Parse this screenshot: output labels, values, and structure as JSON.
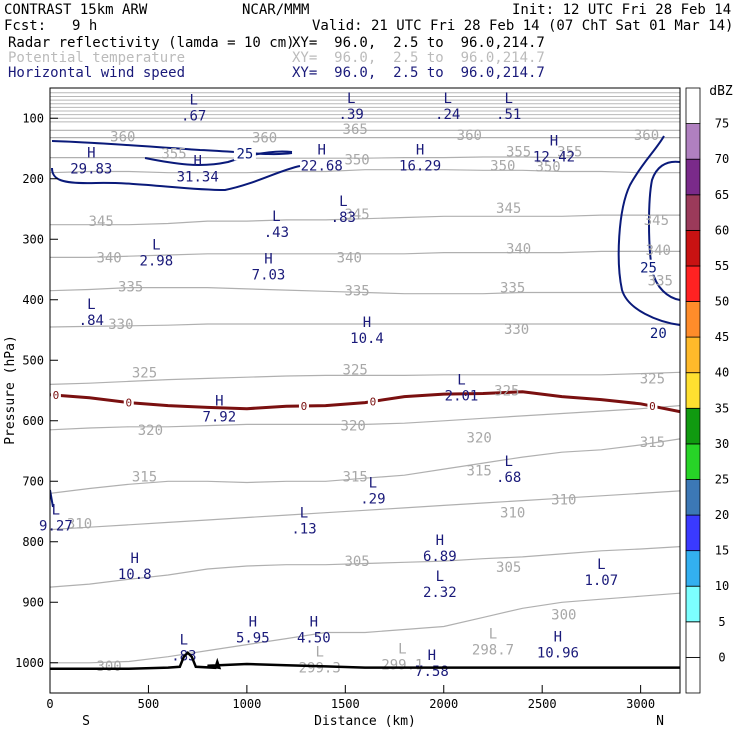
{
  "header": {
    "model": "CONTRAST 15km ARW",
    "org": "NCAR/MMM",
    "init": "Init: 12 UTC Fri 28 Feb 14",
    "fcst_label": "Fcst:",
    "fcst_value": "9 h",
    "valid": "Valid: 21 UTC Fri 28 Feb 14 (07 ChT Sat 01 Mar 14)",
    "fields": [
      {
        "name": "Radar reflectivity (lamda = 10 cm)",
        "xy": "XY=  96.0,  2.5 to  96.0,214.7",
        "color": "#000000"
      },
      {
        "name": "Potential temperature",
        "xy": "XY=  96.0,  2.5 to  96.0,214.7",
        "color": "#bbbbbb"
      },
      {
        "name": "Horizontal wind speed",
        "xy": "XY=  96.0,  2.5 to  96.0,214.7",
        "color": "#1a1a7a"
      }
    ]
  },
  "chart_data": {
    "type": "contour",
    "xlabel": "Distance (km)",
    "ylabel": "Pressure (hPa)",
    "xlim": [
      0,
      3200
    ],
    "ylim": [
      1050,
      50
    ],
    "x_ticks": [
      0,
      500,
      1000,
      1500,
      2000,
      2500,
      3000
    ],
    "y_ticks": [
      100,
      200,
      300,
      400,
      500,
      600,
      700,
      800,
      900,
      1000
    ],
    "x_end_labels": {
      "left": "S",
      "right": "N"
    },
    "colorbar": {
      "unit": "dBZ",
      "levels": [
        0,
        5,
        10,
        15,
        20,
        25,
        30,
        35,
        40,
        45,
        50,
        55,
        60,
        65,
        70,
        75
      ],
      "colors": [
        "#ffffff",
        "#ffffff",
        "#7cffff",
        "#33b0f0",
        "#3a3aff",
        "#3c78b6",
        "#27d427",
        "#109a10",
        "#ffe030",
        "#ffba2a",
        "#ff8c2a",
        "#ff2222",
        "#c81212",
        "#9b3a5a",
        "#7a2a8a",
        "#b080c0",
        "#ffffff"
      ]
    },
    "theta_contours": {
      "color": "#b0b0b0",
      "levels": [
        {
          "value": 300,
          "p": [
            1000,
            1000,
            998,
            990,
            980,
            970,
            960,
            950,
            950,
            945,
            940,
            925,
            910,
            900,
            895,
            890,
            885
          ]
        },
        {
          "value": 305,
          "p": [
            875,
            870,
            862,
            855,
            845,
            840,
            838,
            838,
            836,
            834,
            832,
            828,
            825,
            820,
            815,
            812,
            808
          ]
        },
        {
          "value": 310,
          "p": [
            780,
            776,
            772,
            768,
            764,
            760,
            756,
            752,
            748,
            744,
            740,
            736,
            732,
            728,
            724,
            720,
            716
          ]
        },
        {
          "value": 315,
          "p": [
            720,
            712,
            705,
            700,
            700,
            702,
            700,
            700,
            695,
            690,
            680,
            670,
            660,
            652,
            648,
            640,
            630
          ]
        },
        {
          "value": 320,
          "p": [
            615,
            612,
            610,
            610,
            608,
            606,
            606,
            606,
            606,
            604,
            600,
            596,
            592,
            588,
            584,
            580,
            575
          ]
        },
        {
          "value": 325,
          "p": [
            540,
            538,
            535,
            532,
            530,
            528,
            526,
            525,
            525,
            525,
            524,
            524,
            524,
            524,
            524,
            522,
            520
          ]
        },
        {
          "value": 330,
          "p": [
            445,
            444,
            443,
            442,
            440,
            440,
            440,
            440,
            440,
            440,
            440,
            440,
            440,
            440,
            440,
            440,
            440
          ]
        },
        {
          "value": 335,
          "p": [
            385,
            383,
            380,
            380,
            380,
            382,
            384,
            386,
            388,
            390,
            390,
            390,
            388,
            388,
            388,
            388,
            388
          ]
        },
        {
          "value": 340,
          "p": [
            330,
            330,
            328,
            326,
            324,
            324,
            324,
            324,
            324,
            324,
            322,
            322,
            322,
            322,
            320,
            320,
            320
          ]
        },
        {
          "value": 345,
          "p": [
            276,
            276,
            276,
            274,
            270,
            270,
            268,
            268,
            266,
            264,
            262,
            262,
            262,
            262,
            260,
            260,
            260
          ]
        },
        {
          "value": 350,
          "p": [
            190,
            188,
            188,
            190,
            190,
            190,
            188,
            188,
            185,
            185,
            185,
            186,
            186,
            188,
            188,
            190,
            190
          ]
        },
        {
          "value": 355,
          "p": [
            165,
            165,
            165,
            165,
            165,
            166,
            166,
            166,
            166,
            165,
            165,
            164,
            164,
            165,
            165,
            165,
            165
          ]
        },
        {
          "value": 360,
          "p": [
            132,
            132,
            132,
            132,
            132,
            132,
            132,
            132,
            132,
            132,
            132,
            132,
            132,
            132,
            132,
            132,
            132
          ]
        },
        {
          "value": 365,
          "p": [
            120,
            120,
            120,
            120,
            120,
            120,
            120,
            120,
            120,
            120,
            120,
            120,
            120,
            120,
            120,
            120,
            120
          ]
        }
      ],
      "labels": [
        {
          "text": "360",
          "x": 370,
          "p": 130
        },
        {
          "text": "360",
          "x": 1090,
          "p": 132
        },
        {
          "text": "365",
          "x": 1550,
          "p": 118
        },
        {
          "text": "360",
          "x": 2130,
          "p": 128
        },
        {
          "text": "360",
          "x": 3030,
          "p": 128
        },
        {
          "text": "355",
          "x": 630,
          "p": 158
        },
        {
          "text": "355",
          "x": 2380,
          "p": 155
        },
        {
          "text": "355",
          "x": 2640,
          "p": 155
        },
        {
          "text": "350",
          "x": 1560,
          "p": 168
        },
        {
          "text": "350",
          "x": 2300,
          "p": 178
        },
        {
          "text": "350",
          "x": 2530,
          "p": 180
        },
        {
          "text": "345",
          "x": 260,
          "p": 270
        },
        {
          "text": "345",
          "x": 1560,
          "p": 258
        },
        {
          "text": "345",
          "x": 2330,
          "p": 248
        },
        {
          "text": "345",
          "x": 3080,
          "p": 268
        },
        {
          "text": "340",
          "x": 300,
          "p": 330
        },
        {
          "text": "340",
          "x": 1520,
          "p": 330
        },
        {
          "text": "340",
          "x": 2380,
          "p": 315
        },
        {
          "text": "340",
          "x": 3090,
          "p": 318
        },
        {
          "text": "335",
          "x": 410,
          "p": 378
        },
        {
          "text": "335",
          "x": 1560,
          "p": 385
        },
        {
          "text": "335",
          "x": 2350,
          "p": 380
        },
        {
          "text": "335",
          "x": 3100,
          "p": 368
        },
        {
          "text": "330",
          "x": 360,
          "p": 440
        },
        {
          "text": "330",
          "x": 2370,
          "p": 448
        },
        {
          "text": "325",
          "x": 480,
          "p": 520
        },
        {
          "text": "325",
          "x": 1550,
          "p": 515
        },
        {
          "text": "325",
          "x": 2320,
          "p": 550
        },
        {
          "text": "325",
          "x": 3060,
          "p": 530
        },
        {
          "text": "320",
          "x": 510,
          "p": 615
        },
        {
          "text": "320",
          "x": 1540,
          "p": 608
        },
        {
          "text": "320",
          "x": 2180,
          "p": 628
        },
        {
          "text": "315",
          "x": 480,
          "p": 692
        },
        {
          "text": "315",
          "x": 1550,
          "p": 692
        },
        {
          "text": "315",
          "x": 2180,
          "p": 682
        },
        {
          "text": "315",
          "x": 3060,
          "p": 635
        },
        {
          "text": "310",
          "x": 150,
          "p": 770
        },
        {
          "text": "310",
          "x": 2350,
          "p": 752
        },
        {
          "text": "310",
          "x": 2610,
          "p": 730
        },
        {
          "text": "305",
          "x": 1560,
          "p": 832
        },
        {
          "text": "305",
          "x": 2330,
          "p": 842
        },
        {
          "text": "300",
          "x": 2610,
          "p": 920
        },
        {
          "text": "300",
          "x": 300,
          "p": 1005
        }
      ]
    },
    "wind_contours": {
      "color": "#0a1a7a",
      "labels": [
        {
          "text": "25",
          "x": 990,
          "p": 158
        },
        {
          "text": "25",
          "x": 3040,
          "p": 347
        },
        {
          "text": "20",
          "x": 3090,
          "p": 455
        }
      ]
    },
    "freezing_level": {
      "color": "#7a1010",
      "label": "0",
      "x": [
        0,
        200,
        400,
        600,
        800,
        1000,
        1200,
        1400,
        1600,
        1800,
        2000,
        2200,
        2400,
        2600,
        2800,
        3000,
        3200
      ],
      "p": [
        557,
        562,
        570,
        575,
        578,
        580,
        576,
        575,
        570,
        560,
        556,
        555,
        552,
        560,
        565,
        572,
        585
      ],
      "label_x": [
        30,
        400,
        1290,
        1640,
        3060
      ]
    },
    "extrema": [
      {
        "type": "L",
        "value": ".67",
        "x": 730,
        "p": 82
      },
      {
        "type": "L",
        "value": ".39",
        "x": 1530,
        "p": 80
      },
      {
        "type": "L",
        "value": ".24",
        "x": 2020,
        "p": 80
      },
      {
        "type": "L",
        "value": ".51",
        "x": 2330,
        "p": 80
      },
      {
        "type": "H",
        "value": "29.83",
        "x": 210,
        "p": 170
      },
      {
        "type": "H",
        "value": "31.34",
        "x": 750,
        "p": 183
      },
      {
        "type": "H",
        "value": "22.68",
        "x": 1380,
        "p": 165
      },
      {
        "type": "H",
        "value": "16.29",
        "x": 1880,
        "p": 165
      },
      {
        "type": "H",
        "value": "12.42",
        "x": 2560,
        "p": 150
      },
      {
        "type": "L",
        "value": ".43",
        "x": 1150,
        "p": 275
      },
      {
        "type": "L",
        "value": ".83",
        "x": 1490,
        "p": 250
      },
      {
        "type": "L",
        "value": "2.98",
        "x": 540,
        "p": 322
      },
      {
        "type": "H",
        "value": "7.03",
        "x": 1110,
        "p": 345
      },
      {
        "type": "L",
        "value": ".84",
        "x": 210,
        "p": 420
      },
      {
        "type": "H",
        "value": "10.4",
        "x": 1610,
        "p": 450
      },
      {
        "type": "L",
        "value": "2.01",
        "x": 2090,
        "p": 545
      },
      {
        "type": "H",
        "value": "7.92",
        "x": 860,
        "p": 580
      },
      {
        "type": "L",
        "value": ".68",
        "x": 2330,
        "p": 680
      },
      {
        "type": "L",
        "value": ".29",
        "x": 1640,
        "p": 715
      },
      {
        "type": "L",
        "value": ".13",
        "x": 1290,
        "p": 765
      },
      {
        "type": "L",
        "value": "9.27",
        "x": 30,
        "p": 760
      },
      {
        "type": "H",
        "value": "6.89",
        "x": 1980,
        "p": 810
      },
      {
        "type": "H",
        "value": "10.8",
        "x": 430,
        "p": 840
      },
      {
        "type": "L",
        "value": "2.32",
        "x": 1980,
        "p": 870
      },
      {
        "type": "L",
        "value": "1.07",
        "x": 2800,
        "p": 850
      },
      {
        "type": "H",
        "value": "5.95",
        "x": 1030,
        "p": 945
      },
      {
        "type": "H",
        "value": "4.50",
        "x": 1340,
        "p": 945
      },
      {
        "type": "H",
        "value": "10.96",
        "x": 2580,
        "p": 970
      },
      {
        "type": "L",
        "value": ".83",
        "x": 680,
        "p": 975
      },
      {
        "type": "H",
        "value": "7.58",
        "x": 1940,
        "p": 1000
      }
    ],
    "theta_extrema": [
      {
        "type": "L",
        "value": "299.3",
        "x": 1370,
        "p": 995
      },
      {
        "type": "L",
        "value": "299.1",
        "x": 1790,
        "p": 990
      },
      {
        "type": "L",
        "value": "298.7",
        "x": 2250,
        "p": 965
      }
    ],
    "terrain_p": [
      1010,
      1010,
      1010,
      1008,
      1005,
      1002,
      1004,
      1006,
      1008,
      1008,
      1008,
      1008,
      1008,
      1008,
      1008,
      1008,
      1008
    ]
  }
}
